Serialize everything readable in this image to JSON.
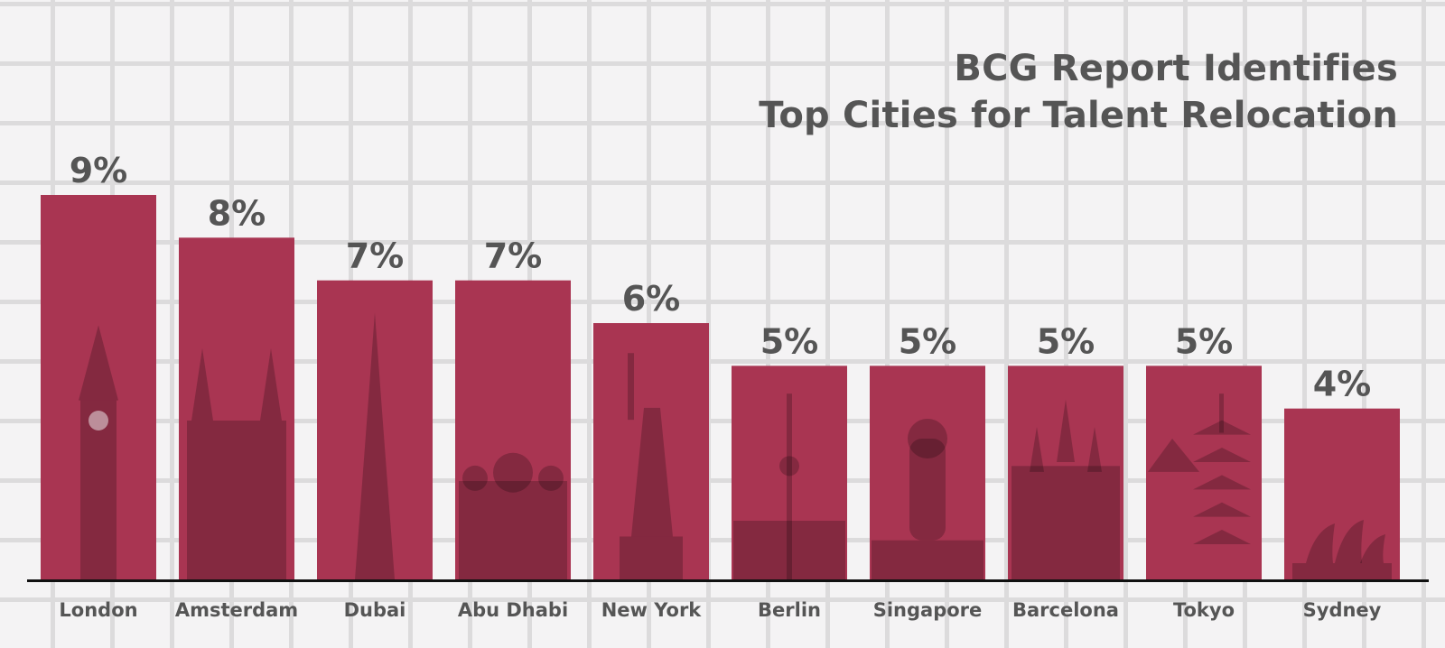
{
  "chart_data": {
    "type": "bar",
    "title": [
      "BCG Report Identifies",
      "Top Cities for Talent Relocation"
    ],
    "xlabel": "",
    "ylabel": "",
    "categories": [
      "London",
      "Amsterdam",
      "Dubai",
      "Abu Dhabi",
      "New York",
      "Berlin",
      "Singapore",
      "Barcelona",
      "Tokyo",
      "Sydney"
    ],
    "values": [
      9,
      8,
      7,
      7,
      6,
      5,
      5,
      5,
      5,
      4
    ],
    "value_suffix": "%",
    "landmark_icons": [
      "big-ben-icon",
      "rijksmuseum-icon",
      "burj-khalifa-icon",
      "grand-mosque-icon",
      "statue-of-liberty-icon",
      "tv-tower-icon",
      "merlion-icon",
      "sagrada-familia-icon",
      "pagoda-icon",
      "opera-house-icon"
    ],
    "ylim": [
      0,
      9.5
    ],
    "grid": true,
    "legend": "none"
  },
  "colors": {
    "bar": "#a93552",
    "text": "#555555",
    "axis": "#111111",
    "background": "#f4f3f4",
    "grid": "#dcdbdc"
  }
}
